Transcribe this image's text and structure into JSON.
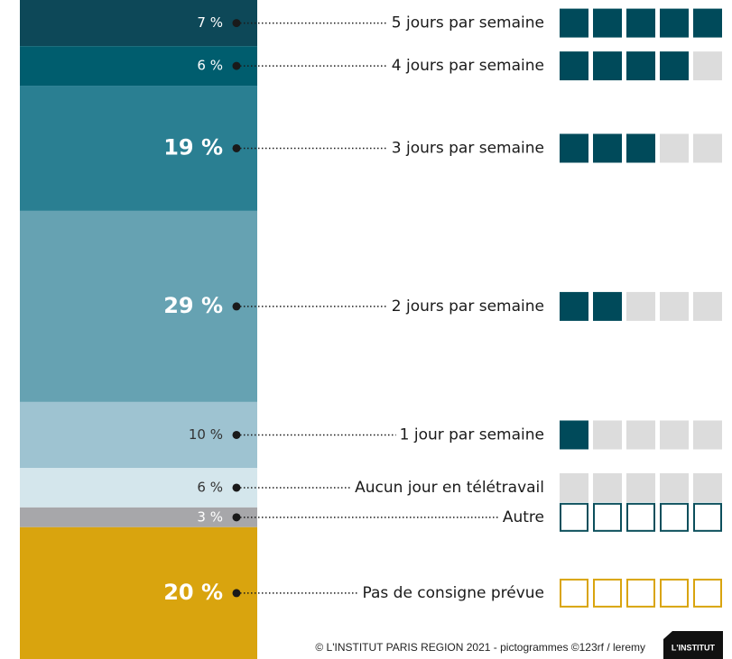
{
  "chart_data": {
    "type": "stacked_column",
    "categories": [
      "5 jours par semaine",
      "4 jours par semaine",
      "3 jours par semaine",
      "2 jours par semaine",
      "1 jour par semaine",
      "Aucun jour en télétravail",
      "Autre",
      "Pas de consigne prévue"
    ],
    "values": [
      7,
      6,
      19,
      29,
      10,
      6,
      3,
      20
    ],
    "value_labels": [
      "7 %",
      "6 %",
      "19 %",
      "29 %",
      "10 %",
      "6 %",
      "3 %",
      "20 %"
    ],
    "colors": [
      "#0d4858",
      "#005d6e",
      "#2a7f92",
      "#66a2b2",
      "#9ec3d1",
      "#d4e6ec",
      "#a7a7aa",
      "#d9a40e"
    ],
    "label_colors": [
      "#ffffff",
      "#ffffff",
      "#ffffff",
      "#ffffff",
      "#333333",
      "#333333",
      "#ffffff",
      "#ffffff"
    ],
    "pictogram_filled": [
      5,
      4,
      3,
      2,
      1,
      0,
      0,
      0
    ],
    "pictogram_outline_colors": [
      null,
      null,
      null,
      null,
      null,
      null,
      "#0b4f5c",
      "#d9a40e"
    ],
    "source": "© L'INSTITUT PARIS REGION 2021 - pictogrammes ©123rf / leremy",
    "logo": "L'INSTITUT"
  }
}
